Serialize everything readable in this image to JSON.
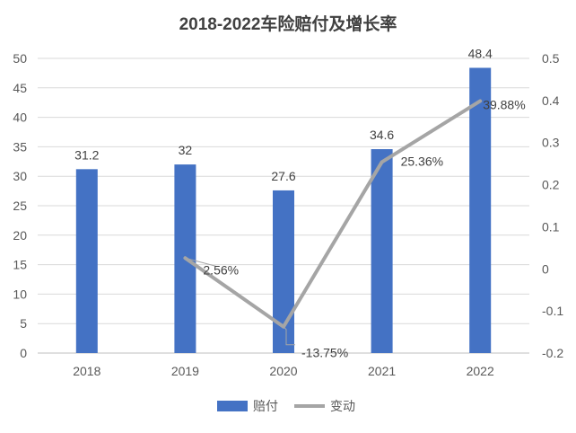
{
  "chart_data": {
    "type": "bar",
    "title": "2018-2022车险赔付及增长率",
    "categories": [
      "2018",
      "2019",
      "2020",
      "2021",
      "2022"
    ],
    "series": [
      {
        "name": "赔付",
        "type": "bar",
        "axis": "left",
        "color": "#4472C4",
        "values": [
          31.2,
          32,
          27.6,
          34.6,
          48.4
        ],
        "labels": [
          "31.2",
          "32",
          "27.6",
          "34.6",
          "48.4"
        ]
      },
      {
        "name": "变动",
        "type": "line",
        "axis": "right",
        "color": "#A5A5A5",
        "values": [
          null,
          0.0256,
          -0.1375,
          0.2536,
          0.3988
        ],
        "labels": [
          "",
          "2.56%",
          "-13.75%",
          "25.36%",
          "39.88%"
        ]
      }
    ],
    "y_left": {
      "range": [
        0,
        50
      ],
      "ticks": [
        "0",
        "5",
        "10",
        "15",
        "20",
        "25",
        "30",
        "35",
        "40",
        "45",
        "50"
      ]
    },
    "y_right": {
      "range": [
        -0.2,
        0.5
      ],
      "ticks": [
        "-0.2",
        "-0.1",
        "0",
        "0.1",
        "0.2",
        "0.3",
        "0.4",
        "0.5"
      ]
    },
    "grid": true,
    "legend": "bottom"
  }
}
